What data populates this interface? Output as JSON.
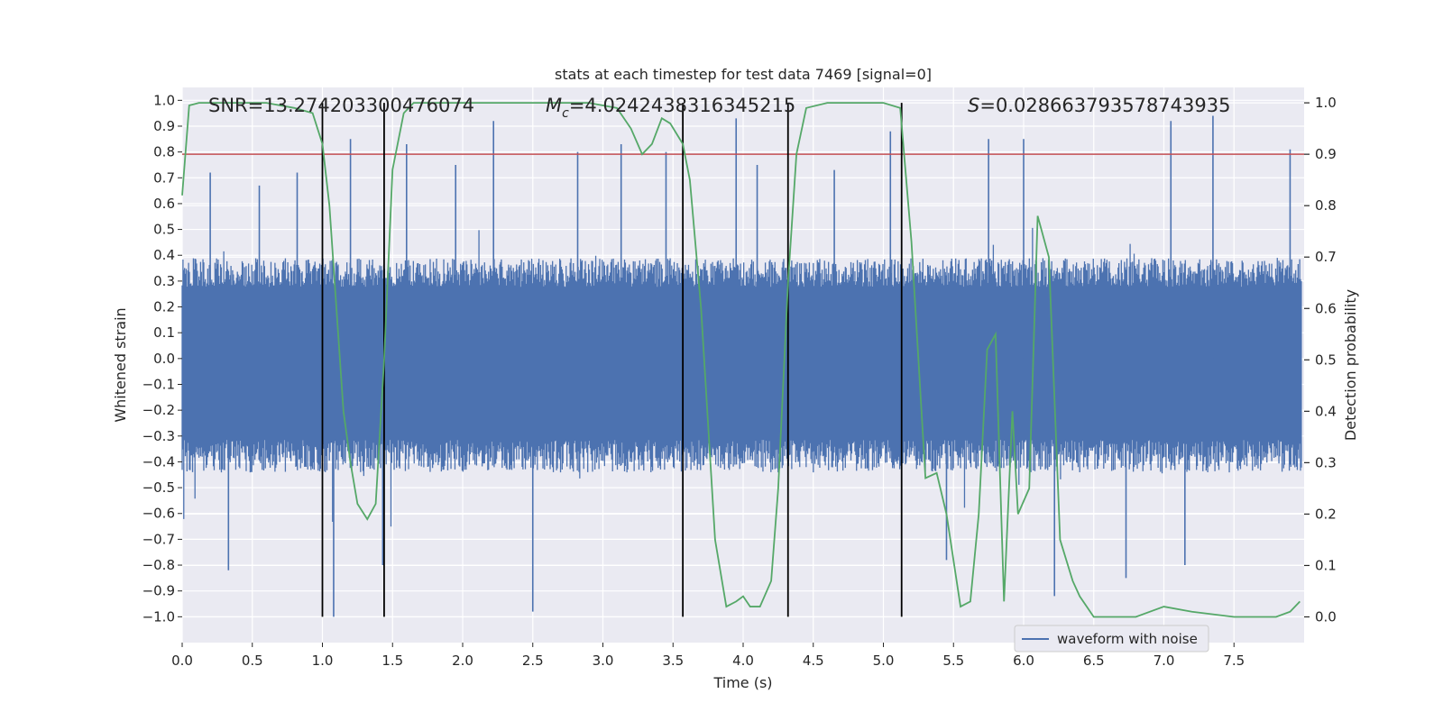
{
  "chart_data": {
    "type": "line",
    "title": "stats at each timestep for test data 7469 [signal=0]",
    "xlabel": "Time (s)",
    "ylabel": "Whitened strain",
    "ylabel_right": "Detection probability",
    "xlim": [
      0.0,
      8.0
    ],
    "ylim": [
      -1.1,
      1.05
    ],
    "ylim_right": [
      -0.05,
      1.03
    ],
    "x_ticks": [
      0.0,
      0.5,
      1.0,
      1.5,
      2.0,
      2.5,
      3.0,
      3.5,
      4.0,
      4.5,
      5.0,
      5.5,
      6.0,
      6.5,
      7.0,
      7.5
    ],
    "x_tick_labels": [
      "0.0",
      "0.5",
      "1.0",
      "1.5",
      "2.0",
      "2.5",
      "3.0",
      "3.5",
      "4.0",
      "4.5",
      "5.0",
      "5.5",
      "6.0",
      "6.5",
      "7.0",
      "7.5"
    ],
    "y_ticks": [
      1.0,
      0.9,
      0.8,
      0.7,
      0.6,
      0.5,
      0.4,
      0.3,
      0.2,
      0.1,
      0.0,
      -0.1,
      -0.2,
      -0.3,
      -0.4,
      -0.5,
      -0.6,
      -0.7,
      -0.8,
      -0.9,
      -1.0
    ],
    "y_tick_labels": [
      "1.0",
      "0.9",
      "0.8",
      "0.7",
      "0.6",
      "0.5",
      "0.4",
      "0.3",
      "0.2",
      "0.1",
      "0.0",
      "−0.1",
      "−0.2",
      "−0.3",
      "−0.4",
      "−0.5",
      "−0.6",
      "−0.7",
      "−0.8",
      "−0.9",
      "−1.0"
    ],
    "y_right_ticks": [
      1.0,
      0.9,
      0.8,
      0.7,
      0.6,
      0.5,
      0.4,
      0.3,
      0.2,
      0.1,
      0.0
    ],
    "y_right_tick_labels": [
      "1.0",
      "0.9",
      "0.8",
      "0.7",
      "0.6",
      "0.5",
      "0.4",
      "0.3",
      "0.2",
      "0.1",
      "0.0"
    ],
    "grid": true,
    "legend_position": "lower-right",
    "annotations": {
      "snr": "SNR=13.274203300476074",
      "mc_symbol": "M",
      "mc_sub": "c",
      "mc_value": "=4.0242438316345215",
      "s_symbol": "S",
      "s_value": "=0.028663793578743935"
    },
    "threshold_right": 0.9,
    "vertical_lines_x": [
      1.0,
      1.44,
      3.57,
      4.32,
      5.13
    ],
    "waveform": {
      "name": "waveform with noise",
      "color": "#4c72b0",
      "typical_range": [
        -0.42,
        0.37
      ],
      "notable_peaks": [
        {
          "x": 0.2,
          "y": 0.72
        },
        {
          "x": 0.33,
          "y": -0.82
        },
        {
          "x": 0.55,
          "y": 0.67
        },
        {
          "x": 0.82,
          "y": 0.72
        },
        {
          "x": 1.08,
          "y": -1.0
        },
        {
          "x": 1.2,
          "y": 0.85
        },
        {
          "x": 1.43,
          "y": -0.8
        },
        {
          "x": 1.6,
          "y": 0.83
        },
        {
          "x": 1.95,
          "y": 0.75
        },
        {
          "x": 2.22,
          "y": 0.92
        },
        {
          "x": 2.5,
          "y": -0.98
        },
        {
          "x": 2.82,
          "y": 0.8
        },
        {
          "x": 3.13,
          "y": 0.83
        },
        {
          "x": 3.45,
          "y": 0.8
        },
        {
          "x": 3.95,
          "y": 0.93
        },
        {
          "x": 4.1,
          "y": 0.75
        },
        {
          "x": 4.65,
          "y": 0.73
        },
        {
          "x": 5.05,
          "y": 0.88
        },
        {
          "x": 5.45,
          "y": -0.78
        },
        {
          "x": 5.75,
          "y": 0.85
        },
        {
          "x": 6.0,
          "y": 0.85
        },
        {
          "x": 6.22,
          "y": -0.92
        },
        {
          "x": 6.73,
          "y": -0.85
        },
        {
          "x": 7.05,
          "y": 0.92
        },
        {
          "x": 7.15,
          "y": -0.8
        },
        {
          "x": 7.35,
          "y": 0.94
        },
        {
          "x": 7.9,
          "y": 0.81
        }
      ]
    },
    "probability": {
      "color": "#55a868",
      "x": [
        0.0,
        0.05,
        0.12,
        0.3,
        0.6,
        0.8,
        0.93,
        1.0,
        1.05,
        1.1,
        1.15,
        1.2,
        1.25,
        1.32,
        1.38,
        1.44,
        1.5,
        1.58,
        1.65,
        1.75,
        2.0,
        2.3,
        2.6,
        2.9,
        3.1,
        3.2,
        3.28,
        3.35,
        3.42,
        3.48,
        3.57,
        3.62,
        3.7,
        3.8,
        3.88,
        3.95,
        4.0,
        4.05,
        4.12,
        4.2,
        4.25,
        4.32,
        4.38,
        4.45,
        4.6,
        4.8,
        5.0,
        5.12,
        5.2,
        5.3,
        5.38,
        5.45,
        5.55,
        5.62,
        5.68,
        5.74,
        5.8,
        5.86,
        5.92,
        5.96,
        6.04,
        6.1,
        6.18,
        6.26,
        6.35,
        6.4,
        6.5,
        6.8,
        7.0,
        7.2,
        7.5,
        7.8,
        7.9,
        7.97
      ],
      "y": [
        0.82,
        0.995,
        1.0,
        1.0,
        1.0,
        0.99,
        0.98,
        0.92,
        0.8,
        0.6,
        0.4,
        0.3,
        0.22,
        0.19,
        0.22,
        0.5,
        0.87,
        0.98,
        1.0,
        1.0,
        1.0,
        1.0,
        1.0,
        1.0,
        0.99,
        0.95,
        0.9,
        0.92,
        0.97,
        0.96,
        0.92,
        0.85,
        0.6,
        0.15,
        0.02,
        0.03,
        0.04,
        0.02,
        0.02,
        0.07,
        0.25,
        0.65,
        0.9,
        0.99,
        1.0,
        1.0,
        1.0,
        0.99,
        0.73,
        0.27,
        0.28,
        0.2,
        0.02,
        0.03,
        0.2,
        0.52,
        0.55,
        0.03,
        0.4,
        0.2,
        0.25,
        0.78,
        0.7,
        0.15,
        0.07,
        0.04,
        0.0,
        0.0,
        0.02,
        0.01,
        0.0,
        0.0,
        0.01,
        0.03
      ]
    }
  }
}
